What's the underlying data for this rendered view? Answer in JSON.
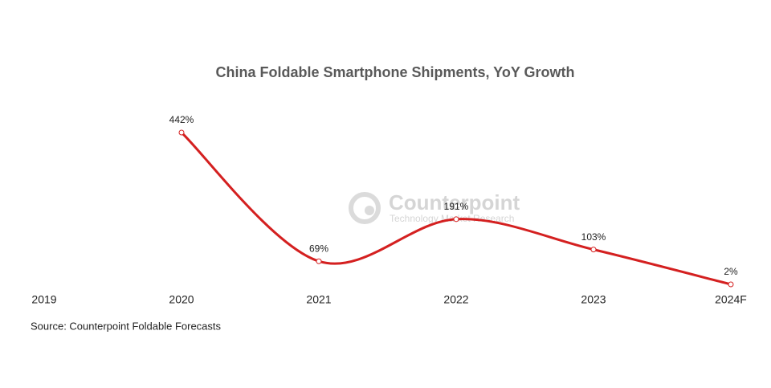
{
  "chart_data": {
    "type": "line",
    "title": "China Foldable Smartphone Shipments, YoY Growth",
    "categories": [
      "2019",
      "2020",
      "2021",
      "2022",
      "2023",
      "2024F"
    ],
    "series": [
      {
        "name": "YoY Growth",
        "color": "#d42020",
        "values": [
          null,
          442,
          69,
          191,
          103,
          2
        ],
        "value_labels": [
          null,
          "442%",
          "69%",
          "191%",
          "103%",
          "2%"
        ]
      }
    ],
    "source": "Source: Counterpoint Foldable Forecasts",
    "watermark": "Counterpoint",
    "watermark_tagline": "Technology Market Research",
    "legend": false,
    "grid": false
  }
}
